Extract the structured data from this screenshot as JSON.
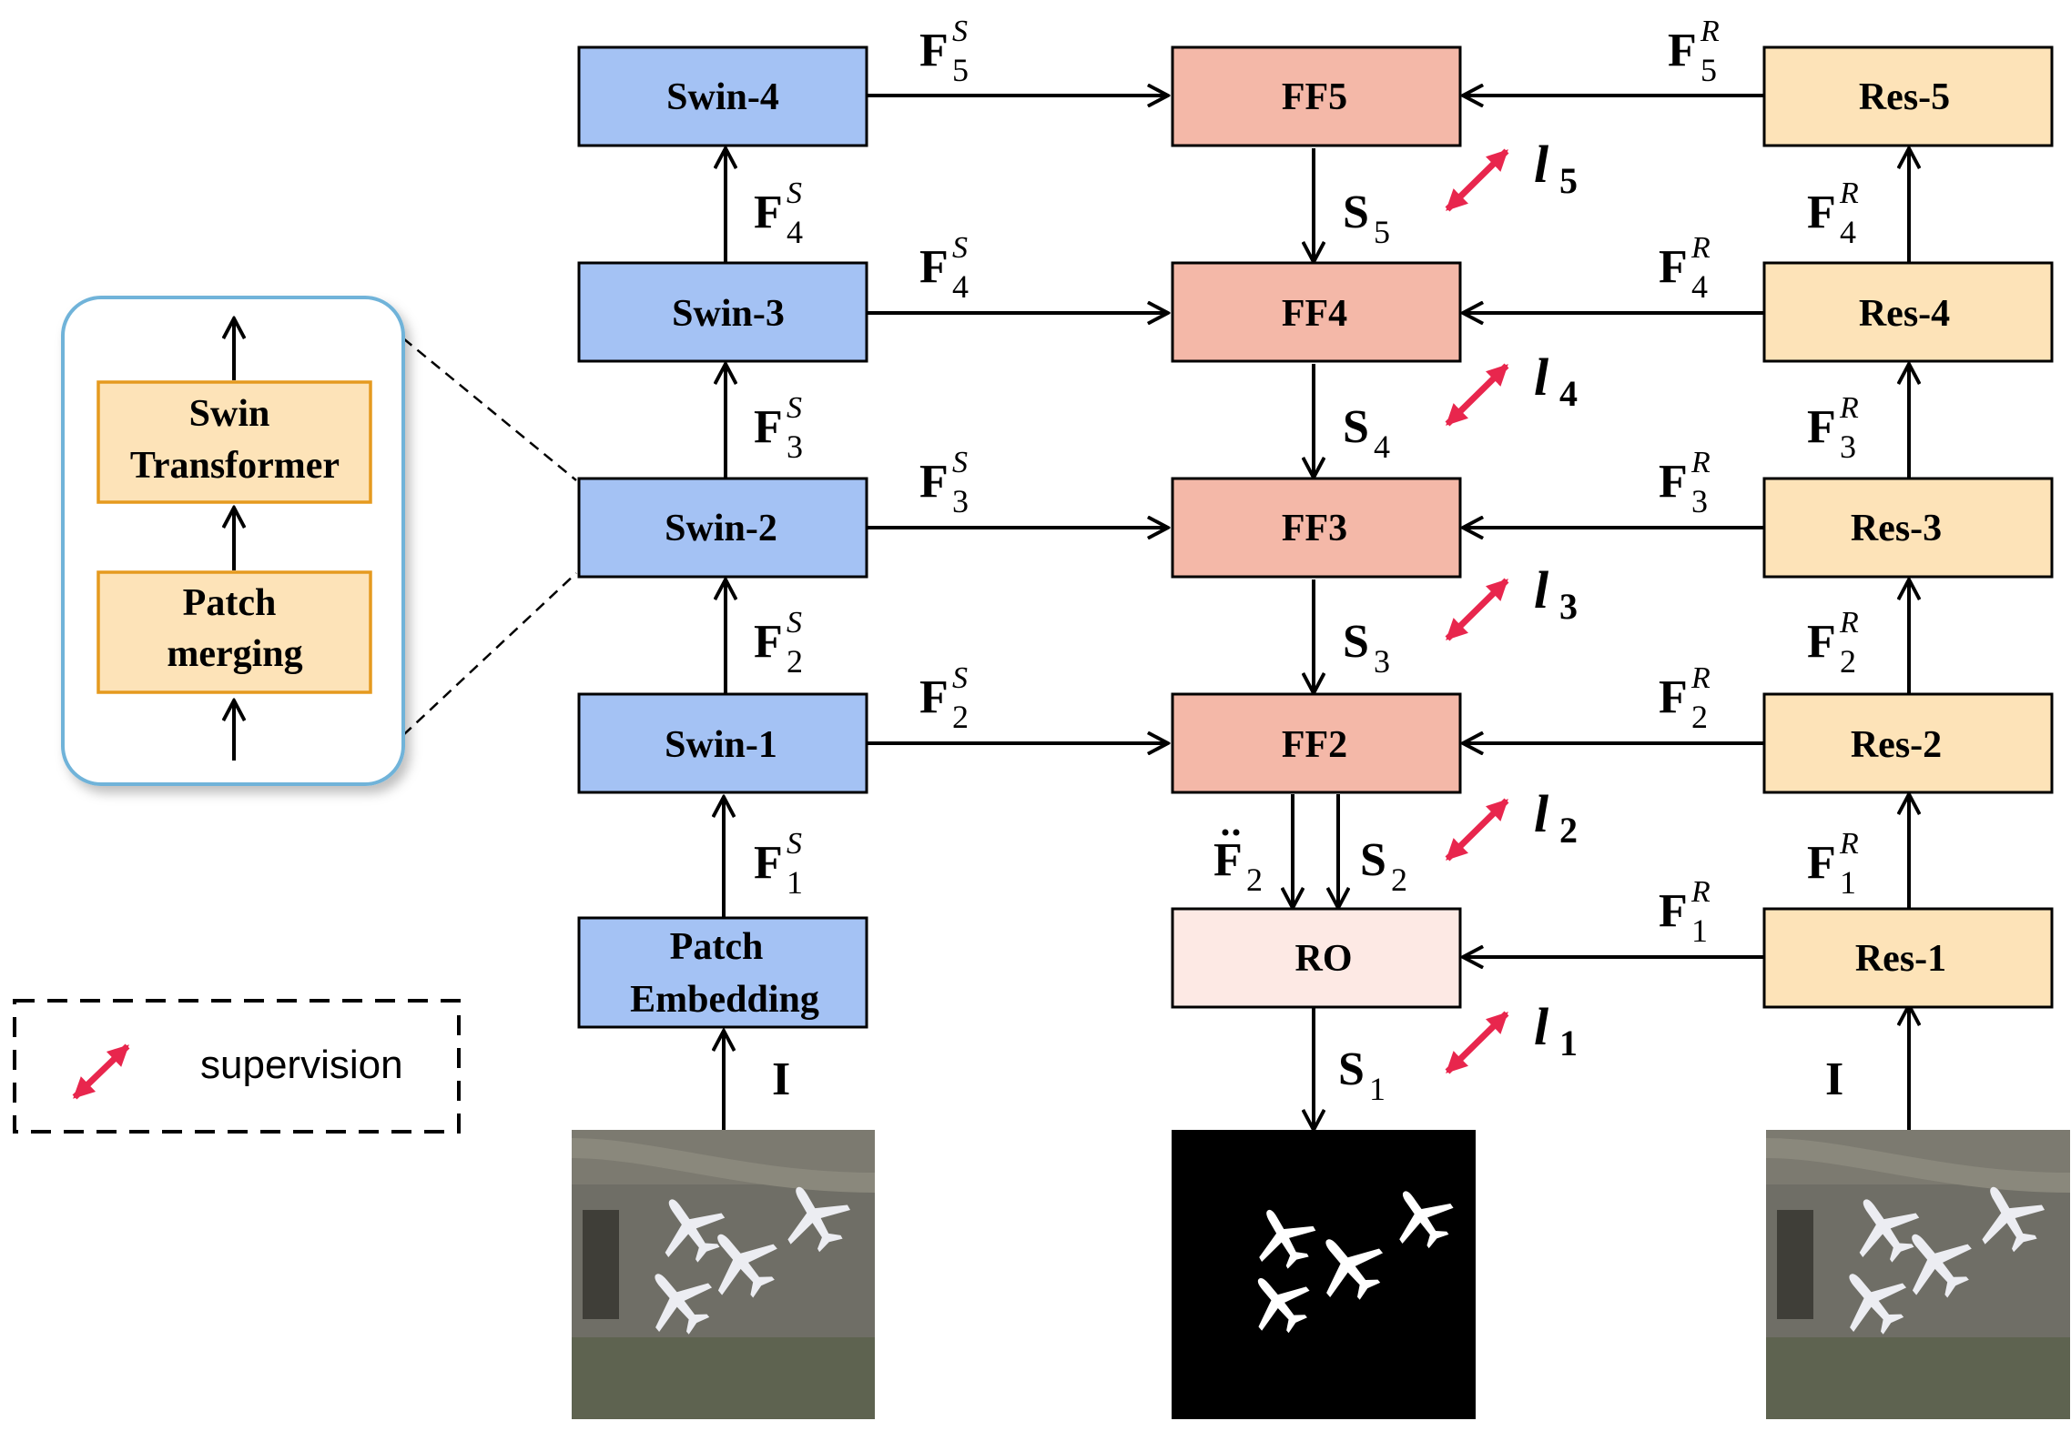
{
  "colors": {
    "swin_fill": "#a4c2f4",
    "ff_fill": "#f4b8a8",
    "ro_fill": "#fde9e4",
    "res_fill": "#fde3b8",
    "inner_fill": "#fde3b8",
    "inner_border": "#e59a1f",
    "callout_border": "#6fb3d9",
    "supervision_arrow": "#e8264d",
    "stroke": "#000000"
  },
  "encoder_swin": {
    "patch_embedding": [
      "Patch",
      "Embedding"
    ],
    "swin_1": "Swin-1",
    "swin_2": "Swin-2",
    "swin_3": "Swin-3",
    "swin_4": "Swin-4",
    "input_label": "I"
  },
  "encoder_res": {
    "res_1": "Res-1",
    "res_2": "Res-2",
    "res_3": "Res-3",
    "res_4": "Res-4",
    "res_5": "Res-5",
    "input_label": "I"
  },
  "fusion": {
    "ff5": "FF5",
    "ff4": "FF4",
    "ff3": "FF3",
    "ff2": "FF2",
    "ro": "RO"
  },
  "labels": {
    "F": "F",
    "S": "S",
    "R": "R",
    "l": "l",
    "n1": "1",
    "n2": "2",
    "n3": "3",
    "n4": "4",
    "n5": "5"
  },
  "swin_detail": {
    "swin_transformer": [
      "Swin",
      "Transformer"
    ],
    "patch_merging": [
      "Patch",
      "merging"
    ]
  },
  "legend": {
    "supervision_label": "supervision",
    "icon": "double-arrow-icon"
  },
  "images": {
    "input_left": "aerial-airport-image",
    "output_mask": "saliency-mask-image",
    "input_right": "aerial-airport-image"
  }
}
